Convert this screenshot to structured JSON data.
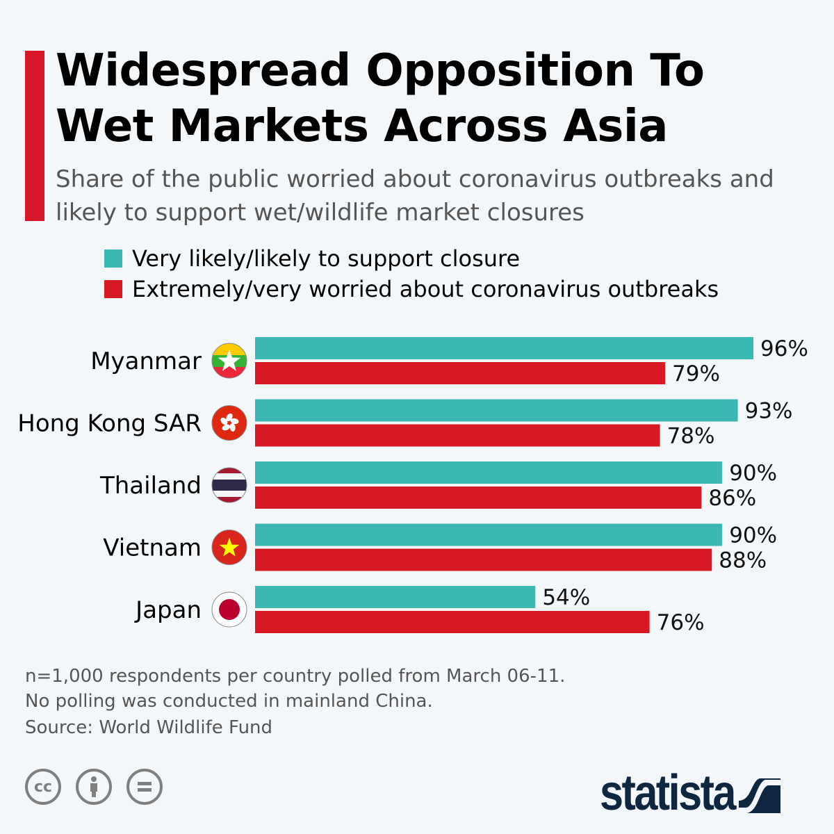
{
  "header": {
    "title_line1": "Widespread Opposition To",
    "title_line2": "Wet Markets Across Asia",
    "subtitle": "Share of the public worried about coronavirus outbreaks and likely to support wet/wildlife market closures"
  },
  "chart_data": {
    "type": "bar",
    "orientation": "horizontal",
    "categories": [
      "Myanmar",
      "Hong Kong SAR",
      "Thailand",
      "Vietnam",
      "Japan"
    ],
    "series": [
      {
        "name": "Very likely/likely to support closure",
        "color": "#3bb8b3",
        "values": [
          96,
          93,
          90,
          90,
          54
        ]
      },
      {
        "name": "Extremely/very worried about coronavirus outbreaks",
        "color": "#d71923",
        "values": [
          79,
          78,
          86,
          88,
          76
        ]
      }
    ],
    "value_suffix": "%",
    "xlim": [
      0,
      100
    ],
    "grid": false,
    "legend_position": "top",
    "flag_icons": [
      "myanmar-flag-icon",
      "hong-kong-flag-icon",
      "thailand-flag-icon",
      "vietnam-flag-icon",
      "japan-flag-icon"
    ]
  },
  "footer": {
    "note_line1": "n=1,000 respondents per country polled from March 06-11.",
    "note_line2": "No polling was conducted in mainland China.",
    "source": "Source: World Wildlife Fund",
    "license_icons": [
      "cc-icon",
      "attribution-icon",
      "no-derivatives-icon"
    ],
    "brand": "statista"
  }
}
